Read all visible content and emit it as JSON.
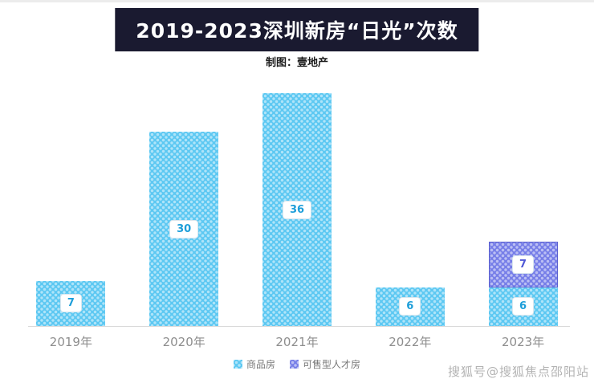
{
  "header": {
    "title": "2019-2023深圳新房“日光”次数",
    "subtitle": "制图：壹地产",
    "title_bg": "#1a1a30",
    "title_color": "#ffffff"
  },
  "watermark": "搜狐号@搜狐焦点邵阳站",
  "chart_data": {
    "type": "bar",
    "stacked": true,
    "title": "2019-2023深圳新房“日光”次数",
    "categories": [
      "2019年",
      "2020年",
      "2021年",
      "2022年",
      "2023年"
    ],
    "series": [
      {
        "name": "商品房",
        "values": [
          7,
          30,
          36,
          6,
          6
        ],
        "color": "#5cc8f2",
        "label_color": "#1d9ed9",
        "border": ""
      },
      {
        "name": "可售型人才房",
        "values": [
          0,
          0,
          0,
          0,
          7
        ],
        "color": "#767ee8",
        "label_color": "#5058d6",
        "border": "#5a5fd0"
      }
    ],
    "ylim": [
      0,
      36
    ],
    "grid": false,
    "legend_position": "bottom",
    "value_labels": true
  }
}
